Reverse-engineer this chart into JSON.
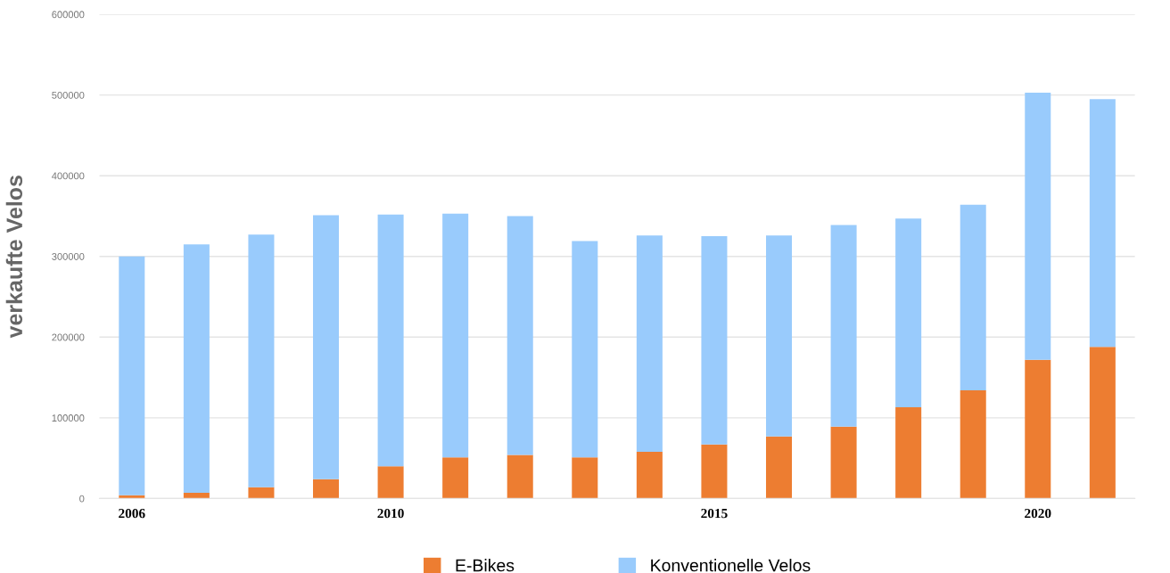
{
  "chart_data": {
    "type": "bar",
    "stacked": true,
    "ylabel": "verkaufte Velos",
    "categories": [
      "2006",
      null,
      null,
      null,
      "2010",
      null,
      null,
      null,
      null,
      "2015",
      null,
      null,
      null,
      null,
      "2020",
      null
    ],
    "series": [
      {
        "name": "E-Bikes",
        "color": "#ed7d31",
        "values": [
          4000,
          7000,
          14000,
          24000,
          40000,
          51000,
          54000,
          51000,
          58000,
          67000,
          77000,
          89000,
          113000,
          134000,
          172000,
          188000
        ]
      },
      {
        "name": "Konventionelle Velos",
        "color": "#99cbfc",
        "values": [
          296000,
          308000,
          313000,
          327000,
          312000,
          302000,
          296000,
          268000,
          268000,
          258000,
          249000,
          250000,
          234000,
          230000,
          331000,
          307000
        ]
      }
    ],
    "ylim": [
      0,
      600000
    ],
    "yticks": [
      0,
      100000,
      200000,
      300000,
      400000,
      500000,
      600000
    ],
    "grid": "y",
    "legend": "bottom"
  }
}
